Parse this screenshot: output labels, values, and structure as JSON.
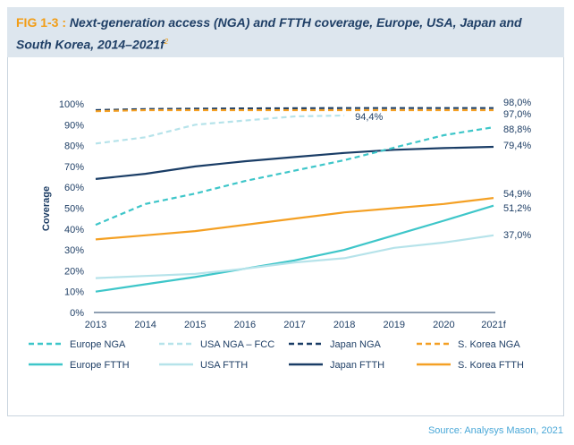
{
  "figure": {
    "label": "FIG 1-3",
    "separator": " : ",
    "title": "Next-generation access (NGA) and FTTH coverage, Europe, USA, Japan and South Korea, 2014–2021f",
    "footnote": "2",
    "source": "Source: Analysys Mason, 2021"
  },
  "colors": {
    "europe": "#3ec6c9",
    "usa": "#b6e3ea",
    "japan": "#1a3d66",
    "korea": "#f4a024"
  },
  "chart_data": {
    "type": "line",
    "x": [
      "2013",
      "2014",
      "2015",
      "2016",
      "2017",
      "2018",
      "2019",
      "2020",
      "2021f"
    ],
    "ylabel": "Coverage",
    "xlabel": "",
    "ylim": [
      0,
      100
    ],
    "yticks": [
      "0%",
      "10%",
      "20%",
      "30%",
      "40%",
      "50%",
      "60%",
      "70%",
      "80%",
      "90%",
      "100%"
    ],
    "grid": false,
    "legend_position": "bottom",
    "series": [
      {
        "name": "Europe NGA",
        "dashed": true,
        "color_key": "europe",
        "values": [
          42,
          52,
          57,
          63,
          68,
          73,
          79,
          85,
          88.8
        ],
        "end_label": "88,8%"
      },
      {
        "name": "USA NGA – FCC",
        "dashed": true,
        "color_key": "usa",
        "values": [
          81,
          84,
          90,
          92,
          94,
          94.4,
          null,
          null,
          null
        ],
        "end_label": "94,4%"
      },
      {
        "name": "Japan NGA",
        "dashed": true,
        "color_key": "japan",
        "values": [
          97,
          97.5,
          97.7,
          97.8,
          97.9,
          98,
          98,
          98,
          98
        ],
        "end_label": "98,0%"
      },
      {
        "name": "S. Korea NGA",
        "dashed": true,
        "color_key": "korea",
        "values": [
          96.5,
          97,
          97,
          97,
          97,
          97,
          97,
          97,
          97
        ],
        "end_label": "97,0%"
      },
      {
        "name": "Europe FTTH",
        "dashed": false,
        "color_key": "europe",
        "values": [
          10,
          13.5,
          17,
          21,
          25,
          30,
          37,
          44,
          51.2
        ],
        "end_label": "51,2%"
      },
      {
        "name": "USA FTTH",
        "dashed": false,
        "color_key": "usa",
        "values": [
          16.5,
          17.5,
          18.5,
          21,
          24,
          26,
          31,
          33.5,
          37
        ],
        "end_label": "37,0%"
      },
      {
        "name": "Japan FTTH",
        "dashed": false,
        "color_key": "japan",
        "values": [
          64,
          66.5,
          70,
          72.5,
          74.5,
          76.5,
          78,
          78.8,
          79.4
        ],
        "end_label": "79,4%"
      },
      {
        "name": "S. Korea FTTH",
        "dashed": false,
        "color_key": "korea",
        "values": [
          35,
          37,
          39,
          42,
          45,
          48,
          50,
          52,
          54.9
        ],
        "end_label": "54,9%"
      }
    ]
  }
}
